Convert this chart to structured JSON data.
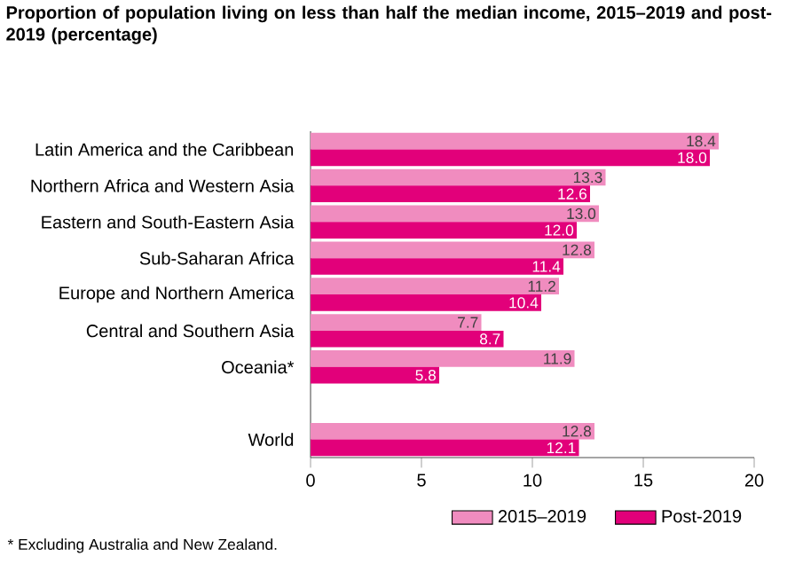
{
  "chart_data": {
    "type": "bar",
    "orientation": "horizontal",
    "title": "Proportion of population living on less than half the median income, 2015–2019 and post-2019 (percentage)",
    "categories": [
      "Latin America and the Caribbean",
      "Northern Africa and Western Asia",
      "Eastern and South-Eastern Asia",
      "Sub-Saharan Africa",
      "Europe and Northern America",
      "Central and Southern Asia",
      "Oceania*",
      null,
      "World"
    ],
    "series": [
      {
        "name": "2015–2019",
        "color": "#f08cbf",
        "values": [
          18.4,
          13.3,
          13.0,
          12.8,
          11.2,
          7.7,
          11.9,
          null,
          12.8
        ],
        "value_labels": [
          "18.4",
          "13.3",
          "13.0",
          "12.8",
          "11.2",
          "7.7",
          "11.9",
          null,
          "12.8"
        ]
      },
      {
        "name": "Post-2019",
        "color": "#e2007a",
        "values": [
          18.0,
          12.6,
          12.0,
          11.4,
          10.4,
          8.7,
          5.8,
          null,
          12.1
        ],
        "value_labels": [
          "18.0",
          "12.6",
          "12.0",
          "11.4",
          "10.4",
          "8.7",
          "5.8",
          null,
          "12.1"
        ]
      }
    ],
    "xlim": [
      0,
      20
    ],
    "xticks": [
      0,
      5,
      10,
      15,
      20
    ],
    "legend": "bottom right",
    "annotations": [
      "* Excluding Australia and New Zealand."
    ]
  }
}
